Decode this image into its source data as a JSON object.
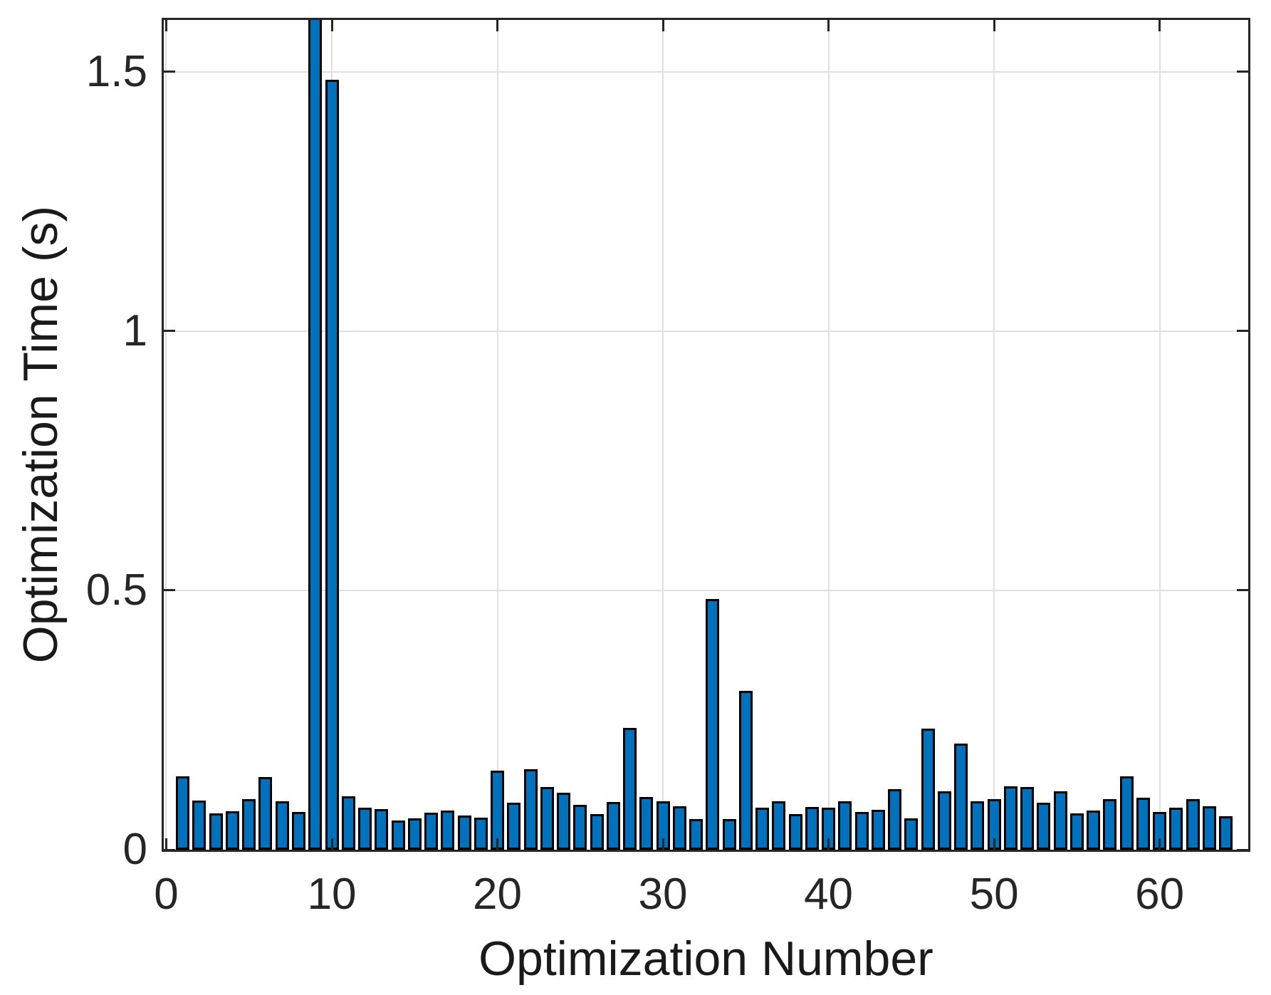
{
  "chart_data": {
    "type": "bar",
    "title": "",
    "xlabel": "Optimization Number",
    "ylabel": "Optimization Time (s)",
    "x": [
      1,
      2,
      3,
      4,
      5,
      6,
      7,
      8,
      9,
      10,
      11,
      12,
      13,
      14,
      15,
      16,
      17,
      18,
      19,
      20,
      21,
      22,
      23,
      24,
      25,
      26,
      27,
      28,
      29,
      30,
      31,
      32,
      33,
      34,
      35,
      36,
      37,
      38,
      39,
      40,
      41,
      42,
      43,
      44,
      45,
      46,
      47,
      48,
      49,
      50,
      51,
      52,
      53,
      54,
      55,
      56,
      57,
      58,
      59,
      60,
      61,
      62,
      63,
      64
    ],
    "values": [
      0.141,
      0.095,
      0.07,
      0.074,
      0.097,
      0.14,
      0.094,
      0.073,
      1.62,
      1.484,
      0.103,
      0.081,
      0.078,
      0.056,
      0.06,
      0.071,
      0.076,
      0.066,
      0.062,
      0.152,
      0.091,
      0.155,
      0.121,
      0.11,
      0.086,
      0.069,
      0.092,
      0.235,
      0.101,
      0.093,
      0.084,
      0.059,
      0.484,
      0.059,
      0.306,
      0.081,
      0.094,
      0.068,
      0.082,
      0.081,
      0.093,
      0.073,
      0.077,
      0.117,
      0.06,
      0.233,
      0.112,
      0.204,
      0.093,
      0.098,
      0.122,
      0.121,
      0.09,
      0.112,
      0.07,
      0.076,
      0.097,
      0.141,
      0.1,
      0.073,
      0.081,
      0.097,
      0.084,
      0.064
    ],
    "clipped_at_ymax": [
      9
    ],
    "bar_width_fraction": 0.8,
    "xlim": [
      -0.15,
      65.35
    ],
    "ylim": [
      0,
      1.6
    ],
    "xticks": [
      0,
      10,
      20,
      30,
      40,
      50,
      60
    ],
    "xtick_labels": [
      "0",
      "10",
      "20",
      "30",
      "40",
      "50",
      "60"
    ],
    "yticks": [
      0,
      0.5,
      1,
      1.5
    ],
    "ytick_labels": [
      "0",
      "0.5",
      "1",
      "1.5"
    ],
    "grid": true,
    "grid_yticks": [
      0.5,
      1,
      1.5
    ],
    "legend": null,
    "colors": {
      "bar_fill": "#0072BD",
      "bar_edge": "#000000",
      "grid": "#E0E0E0",
      "axis": "#262626",
      "tick_label": "#262626",
      "background": "#FFFFFF"
    }
  }
}
